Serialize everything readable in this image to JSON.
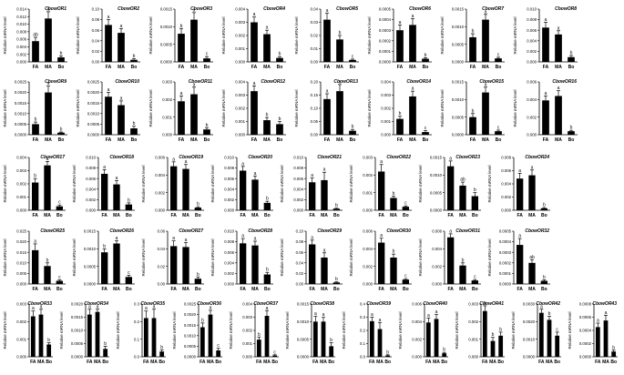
{
  "ylabel": "Relative mRNA level",
  "categories": [
    "FA",
    "MA",
    "Bo"
  ],
  "chart_data": [
    {
      "type": "bar",
      "title": "CbowOR1",
      "ylim": [
        0,
        0.014
      ],
      "yticks": [
        "0.000",
        "0.002",
        "0.004",
        "0.006",
        "0.008",
        "0.010",
        "0.012",
        "0.014"
      ],
      "values": [
        0.0055,
        0.0115,
        0.0012
      ],
      "errors": [
        0.001,
        0.0018,
        0.0004
      ],
      "letters": [
        "ab",
        "a",
        "b"
      ]
    },
    {
      "type": "bar",
      "title": "CbowOR2",
      "ylim": [
        0,
        0.1
      ],
      "yticks": [
        "0.00",
        "0.02",
        "0.04",
        "0.06",
        "0.08",
        "0.10"
      ],
      "values": [
        0.07,
        0.055,
        0.004
      ],
      "errors": [
        0.01,
        0.008,
        0.002
      ],
      "letters": [
        "a",
        "a",
        "b"
      ]
    },
    {
      "type": "bar",
      "title": "CbowOR3",
      "ylim": [
        0,
        0.0015
      ],
      "yticks": [
        "0.0000",
        "0.0005",
        "0.0010",
        "0.0015"
      ],
      "values": [
        0.0008,
        0.0012,
        0.0001
      ],
      "errors": [
        0.00015,
        0.0002,
        5e-05
      ],
      "letters": [
        "b",
        "a",
        "c"
      ]
    },
    {
      "type": "bar",
      "title": "CbowOR4",
      "ylim": [
        0,
        0.004
      ],
      "yticks": [
        "0.000",
        "0.001",
        "0.002",
        "0.003",
        "0.004"
      ],
      "values": [
        0.003,
        0.0021,
        0.0003
      ],
      "errors": [
        0.0004,
        0.0003,
        0.0001
      ],
      "letters": [
        "a",
        "a",
        "b"
      ]
    },
    {
      "type": "bar",
      "title": "CbowOR5",
      "ylim": [
        0,
        0.04
      ],
      "yticks": [
        "0.00",
        "0.01",
        "0.02",
        "0.03",
        "0.04"
      ],
      "values": [
        0.032,
        0.017,
        0.0015
      ],
      "errors": [
        0.005,
        0.003,
        0.0006
      ],
      "letters": [
        "a",
        "b",
        "c"
      ]
    },
    {
      "type": "bar",
      "title": "CbowOR6",
      "ylim": [
        0,
        0.0005
      ],
      "yticks": [
        "0.0000",
        "0.0001",
        "0.0002",
        "0.0003",
        "0.0004",
        "0.0005"
      ],
      "values": [
        0.0003,
        0.00035,
        3e-05
      ],
      "errors": [
        5e-05,
        6e-05,
        1e-05
      ],
      "letters": [
        "a",
        "a",
        "b"
      ]
    },
    {
      "type": "bar",
      "title": "CbowOR7",
      "ylim": [
        0,
        0.0015
      ],
      "yticks": [
        "0.0000",
        "0.0005",
        "0.0010",
        "0.0015"
      ],
      "values": [
        0.0007,
        0.0012,
        0.0001
      ],
      "errors": [
        0.0001,
        0.00015,
        3e-05
      ],
      "letters": [
        "b",
        "a",
        "c"
      ]
    },
    {
      "type": "bar",
      "title": "CbowOR8",
      "ylim": [
        0,
        0.01
      ],
      "yticks": [
        "0.000",
        "0.002",
        "0.004",
        "0.006",
        "0.008",
        "0.010"
      ],
      "values": [
        0.0065,
        0.0052,
        0.0009
      ],
      "errors": [
        0.001,
        0.0007,
        0.0003
      ],
      "letters": [
        "a",
        "a",
        "b"
      ]
    },
    {
      "type": "bar",
      "title": "CbowOR9",
      "ylim": [
        0,
        0.0025
      ],
      "yticks": [
        "0.0000",
        "0.0005",
        "0.0010",
        "0.0015",
        "0.0020",
        "0.0025"
      ],
      "values": [
        0.0005,
        0.002,
        0.0001
      ],
      "errors": [
        0.0001,
        0.0003,
        3e-05
      ],
      "letters": [
        "b",
        "a",
        "b"
      ]
    },
    {
      "type": "bar",
      "title": "CbowOR10",
      "ylim": [
        0,
        0.0025
      ],
      "yticks": [
        "0.0000",
        "0.0005",
        "0.0010",
        "0.0015",
        "0.0020",
        "0.0025"
      ],
      "values": [
        0.0018,
        0.0014,
        0.0003
      ],
      "errors": [
        0.0002,
        0.0002,
        0.0001
      ],
      "letters": [
        "a",
        "a",
        "b"
      ]
    },
    {
      "type": "bar",
      "title": "CbowOR11",
      "ylim": [
        0,
        0.003
      ],
      "yticks": [
        "0.000",
        "0.001",
        "0.002",
        "0.003"
      ],
      "values": [
        0.0019,
        0.0023,
        0.0003
      ],
      "errors": [
        0.0003,
        0.0004,
        0.0001
      ],
      "letters": [
        "a",
        "a",
        "b"
      ]
    },
    {
      "type": "bar",
      "title": "CbowOR12",
      "ylim": [
        0,
        0.004
      ],
      "yticks": [
        "0.000",
        "0.001",
        "0.002",
        "0.003",
        "0.004"
      ],
      "values": [
        0.0033,
        0.0011,
        0.0008
      ],
      "errors": [
        0.0004,
        0.0002,
        0.0002
      ],
      "letters": [
        "a",
        "b",
        "b"
      ]
    },
    {
      "type": "bar",
      "title": "CbowOR13",
      "ylim": [
        0,
        0.2
      ],
      "yticks": [
        "0.00",
        "0.05",
        "0.10",
        "0.15",
        "0.20"
      ],
      "values": [
        0.135,
        0.165,
        0.015
      ],
      "errors": [
        0.02,
        0.025,
        0.005
      ],
      "letters": [
        "a",
        "a",
        "b"
      ]
    },
    {
      "type": "bar",
      "title": "CbowOR14",
      "ylim": [
        0,
        0.004
      ],
      "yticks": [
        "0.000",
        "0.001",
        "0.002",
        "0.003",
        "0.004"
      ],
      "values": [
        0.0012,
        0.0029,
        0.0002
      ],
      "errors": [
        0.0002,
        0.0004,
        0.0001
      ],
      "letters": [
        "b",
        "a",
        "c"
      ]
    },
    {
      "type": "bar",
      "title": "CbowOR15",
      "ylim": [
        0,
        0.0015
      ],
      "yticks": [
        "0.0000",
        "0.0005",
        "0.0010",
        "0.0015"
      ],
      "values": [
        0.0005,
        0.0012,
        0.0001
      ],
      "errors": [
        0.0001,
        0.00015,
        3e-05
      ],
      "letters": [
        "b",
        "a",
        "c"
      ]
    },
    {
      "type": "bar",
      "title": "CbowOR16",
      "ylim": [
        0,
        0.006
      ],
      "yticks": [
        "0.000",
        "0.002",
        "0.004",
        "0.006"
      ],
      "values": [
        0.0039,
        0.0044,
        0.0004
      ],
      "errors": [
        0.0005,
        0.0006,
        0.0001
      ],
      "letters": [
        "a",
        "a",
        "b"
      ]
    },
    {
      "type": "bar",
      "title": "CbowOR17",
      "ylim": [
        0,
        0.004
      ],
      "yticks": [
        "0.000",
        "0.001",
        "0.002",
        "0.003",
        "0.004"
      ],
      "values": [
        0.0021,
        0.0034,
        0.0003
      ],
      "errors": [
        0.0003,
        0.0003,
        0.0001
      ],
      "letters": [
        "b",
        "a",
        "c"
      ]
    },
    {
      "type": "bar",
      "title": "CbowOR18",
      "ylim": [
        0,
        0.01
      ],
      "yticks": [
        "0.000",
        "0.002",
        "0.004",
        "0.006",
        "0.008",
        "0.010"
      ],
      "values": [
        0.0069,
        0.0049,
        0.0011
      ],
      "errors": [
        0.0008,
        0.0007,
        0.0003
      ],
      "letters": [
        "a",
        "a",
        "b"
      ]
    },
    {
      "type": "bar",
      "title": "CbowOR19",
      "ylim": [
        0,
        0.006
      ],
      "yticks": [
        "0.000",
        "0.002",
        "0.004",
        "0.006"
      ],
      "values": [
        0.005,
        0.0047,
        0.0003
      ],
      "errors": [
        0.0005,
        0.0005,
        0.0001
      ],
      "letters": [
        "a",
        "a",
        "b"
      ]
    },
    {
      "type": "bar",
      "title": "CbowOR20",
      "ylim": [
        0,
        0.01
      ],
      "yticks": [
        "0.000",
        "0.002",
        "0.004",
        "0.006",
        "0.008",
        "0.010"
      ],
      "values": [
        0.0075,
        0.0058,
        0.0014
      ],
      "errors": [
        0.0008,
        0.0007,
        0.0003
      ],
      "letters": [
        "a",
        "a",
        "b"
      ]
    },
    {
      "type": "bar",
      "title": "CbowOR21",
      "ylim": [
        0,
        0.01
      ],
      "yticks": [
        "0.000",
        "0.002",
        "0.004",
        "0.006",
        "0.008",
        "0.010"
      ],
      "values": [
        0.0053,
        0.0057,
        0.0003
      ],
      "errors": [
        0.0008,
        0.0015,
        0.0001
      ],
      "letters": [
        "a",
        "a",
        "b"
      ]
    },
    {
      "type": "bar",
      "title": "CbowOR22",
      "ylim": [
        0,
        0.003
      ],
      "yticks": [
        "0.000",
        "0.001",
        "0.002",
        "0.003"
      ],
      "values": [
        0.0022,
        0.0007,
        0.0002
      ],
      "errors": [
        0.0004,
        0.0001,
        5e-05
      ],
      "letters": [
        "a",
        "b",
        "c"
      ]
    },
    {
      "type": "bar",
      "title": "CbowOR23",
      "ylim": [
        0,
        0.0015
      ],
      "yticks": [
        "0.0000",
        "0.0005",
        "0.0010",
        "0.0015"
      ],
      "values": [
        0.00125,
        0.0007,
        0.0004
      ],
      "errors": [
        0.00015,
        0.0001,
        0.0001
      ],
      "letters": [
        "a",
        "ab",
        "b"
      ]
    },
    {
      "type": "bar",
      "title": "CbowOR24",
      "ylim": [
        0,
        0.008
      ],
      "yticks": [
        "0.000",
        "0.002",
        "0.004",
        "0.006",
        "0.008"
      ],
      "values": [
        0.0048,
        0.0053,
        0.0003
      ],
      "errors": [
        0.0008,
        0.0008,
        0.0001
      ],
      "letters": [
        "a",
        "a",
        "b"
      ]
    },
    {
      "type": "bar",
      "title": "CbowOR25",
      "ylim": [
        0,
        0.025
      ],
      "yticks": [
        "0.000",
        "0.005",
        "0.010",
        "0.015",
        "0.020",
        "0.025"
      ],
      "values": [
        0.016,
        0.0085,
        0.0015
      ],
      "errors": [
        0.003,
        0.0015,
        0.0005
      ],
      "letters": [
        "a",
        "b",
        "c"
      ]
    },
    {
      "type": "bar",
      "title": "CbowOR26",
      "ylim": [
        0,
        0.0015
      ],
      "yticks": [
        "0.0000",
        "0.0005",
        "0.0010",
        "0.0015"
      ],
      "values": [
        0.0009,
        0.00115,
        0.0002
      ],
      "errors": [
        0.0001,
        8e-05,
        5e-05
      ],
      "letters": [
        "b",
        "a",
        "c"
      ]
    },
    {
      "type": "bar",
      "title": "CbowOR27",
      "ylim": [
        0,
        0.06
      ],
      "yticks": [
        "0.00",
        "0.02",
        "0.04",
        "0.06"
      ],
      "values": [
        0.043,
        0.042,
        0.006
      ],
      "errors": [
        0.006,
        0.005,
        0.002
      ],
      "letters": [
        "a",
        "a",
        "b"
      ]
    },
    {
      "type": "bar",
      "title": "CbowOR28",
      "ylim": [
        0,
        0.01
      ],
      "yticks": [
        "0.000",
        "0.002",
        "0.004",
        "0.006",
        "0.008",
        "0.010"
      ],
      "values": [
        0.0077,
        0.0073,
        0.0018
      ],
      "errors": [
        0.0009,
        0.0008,
        0.0004
      ],
      "letters": [
        "a",
        "a",
        "b"
      ]
    },
    {
      "type": "bar",
      "title": "CbowOR29",
      "ylim": [
        0,
        0.1
      ],
      "yticks": [
        "0.00",
        "0.02",
        "0.04",
        "0.06",
        "0.08",
        "0.10"
      ],
      "values": [
        0.075,
        0.05,
        0.003
      ],
      "errors": [
        0.008,
        0.009,
        0.001
      ],
      "letters": [
        "a",
        "a",
        "b"
      ]
    },
    {
      "type": "bar",
      "title": "CbowOR30",
      "ylim": [
        0,
        0.006
      ],
      "yticks": [
        "0.000",
        "0.002",
        "0.004",
        "0.006"
      ],
      "values": [
        0.0047,
        0.003,
        0.0005
      ],
      "errors": [
        0.0005,
        0.0004,
        0.0001
      ],
      "letters": [
        "a",
        "b",
        "c"
      ]
    },
    {
      "type": "bar",
      "title": "CbowOR31",
      "ylim": [
        0,
        0.006
      ],
      "yticks": [
        "0.000",
        "0.002",
        "0.004",
        "0.006"
      ],
      "values": [
        0.0053,
        0.0021,
        0.0004
      ],
      "errors": [
        0.0004,
        0.0003,
        0.0001
      ],
      "letters": [
        "a",
        "b",
        "c"
      ]
    },
    {
      "type": "bar",
      "title": "CbowOR32",
      "ylim": [
        0,
        0.0005
      ],
      "yticks": [
        "0.0000",
        "0.0001",
        "0.0002",
        "0.0003",
        "0.0004",
        "0.0005"
      ],
      "values": [
        0.00037,
        0.0002,
        3e-05
      ],
      "errors": [
        6e-05,
        3e-05,
        1e-05
      ],
      "letters": [
        "a",
        "ab",
        "b"
      ]
    },
    {
      "type": "bar",
      "title": "CbowOR33",
      "ylim": [
        0,
        0.003
      ],
      "yticks": [
        "0.000",
        "0.001",
        "0.002",
        "0.003"
      ],
      "values": [
        0.0023,
        0.0024,
        0.0007
      ],
      "errors": [
        0.0003,
        0.0003,
        0.0001
      ],
      "letters": [
        "a",
        "a",
        "b"
      ]
    },
    {
      "type": "bar",
      "title": "CbowOR34",
      "ylim": [
        0,
        0.002
      ],
      "yticks": [
        "0.0000",
        "0.0005",
        "0.0010",
        "0.0015",
        "0.0020"
      ],
      "values": [
        0.0016,
        0.0017,
        0.0003
      ],
      "errors": [
        0.0002,
        0.0001,
        0.0001
      ],
      "letters": [
        "a",
        "a",
        "b"
      ]
    },
    {
      "type": "bar",
      "title": "CbowOR35",
      "ylim": [
        0,
        0.3
      ],
      "yticks": [
        "0.0",
        "0.1",
        "0.2",
        "0.3"
      ],
      "values": [
        0.22,
        0.22,
        0.03
      ],
      "errors": [
        0.04,
        0.05,
        0.01
      ],
      "letters": [
        "a",
        "a",
        "b"
      ]
    },
    {
      "type": "bar",
      "title": "CbowOR36",
      "ylim": [
        0,
        0.0025
      ],
      "yticks": [
        "0.0000",
        "0.0005",
        "0.0010",
        "0.0015",
        "0.0020",
        "0.0025"
      ],
      "values": [
        0.0014,
        0.002,
        0.0003
      ],
      "errors": [
        0.0002,
        0.0002,
        0.0001
      ],
      "letters": [
        "b",
        "a",
        "c"
      ]
    },
    {
      "type": "bar",
      "title": "CbowOR37",
      "ylim": [
        0,
        0.004
      ],
      "yticks": [
        "0.000",
        "0.001",
        "0.002",
        "0.003",
        "0.004"
      ],
      "values": [
        0.0013,
        0.0031,
        0.0001
      ],
      "errors": [
        0.0002,
        0.0004,
        5e-05
      ],
      "letters": [
        "b",
        "a",
        "c"
      ]
    },
    {
      "type": "bar",
      "title": "CbowOR38",
      "ylim": [
        0,
        0.0015
      ],
      "yticks": [
        "0.0000",
        "0.0005",
        "0.0010",
        "0.0015"
      ],
      "values": [
        0.001,
        0.001,
        0.0003
      ],
      "errors": [
        0.00015,
        0.00012,
        0.0001
      ],
      "letters": [
        "a",
        "a",
        "b"
      ]
    },
    {
      "type": "bar",
      "title": "CbowOR39",
      "ylim": [
        0,
        0.4
      ],
      "yticks": [
        "0.0",
        "0.1",
        "0.2",
        "0.3",
        "0.4"
      ],
      "values": [
        0.27,
        0.21,
        0.01
      ],
      "errors": [
        0.03,
        0.05,
        0.005
      ],
      "letters": [
        "a",
        "a",
        "b"
      ]
    },
    {
      "type": "bar",
      "title": "CbowOR40",
      "ylim": [
        0,
        0.006
      ],
      "yticks": [
        "0.000",
        "0.002",
        "0.004",
        "0.006"
      ],
      "values": [
        0.0039,
        0.0043,
        0.0004
      ],
      "errors": [
        0.0005,
        0.0005,
        0.0001
      ],
      "letters": [
        "a",
        "a",
        "b"
      ]
    },
    {
      "type": "bar",
      "title": "CbowOR41",
      "ylim": [
        0,
        0.003
      ],
      "yticks": [
        "0.000",
        "0.001",
        "0.002",
        "0.003"
      ],
      "values": [
        0.0026,
        0.0009,
        0.0012
      ],
      "errors": [
        0.0003,
        0.0002,
        0.0002
      ],
      "letters": [
        "a",
        "b",
        "b"
      ]
    },
    {
      "type": "bar",
      "title": "CbowOR42",
      "ylim": [
        0,
        0.003
      ],
      "yticks": [
        "0.0000",
        "0.0010",
        "0.0020",
        "0.0030"
      ],
      "values": [
        0.0025,
        0.0021,
        0.0012
      ],
      "errors": [
        0.0002,
        0.0002,
        0.0002
      ],
      "letters": [
        "a",
        "b",
        "c"
      ]
    },
    {
      "type": "bar",
      "title": "CbowOR43",
      "ylim": [
        0,
        0.0008
      ],
      "yticks": [
        "0.0000",
        "0.0002",
        "0.0004",
        "0.0006",
        "0.0008"
      ],
      "values": [
        0.00045,
        0.00055,
        8e-05
      ],
      "errors": [
        6e-05,
        8e-05,
        2e-05
      ],
      "letters": [
        "a",
        "a",
        "b"
      ]
    }
  ]
}
